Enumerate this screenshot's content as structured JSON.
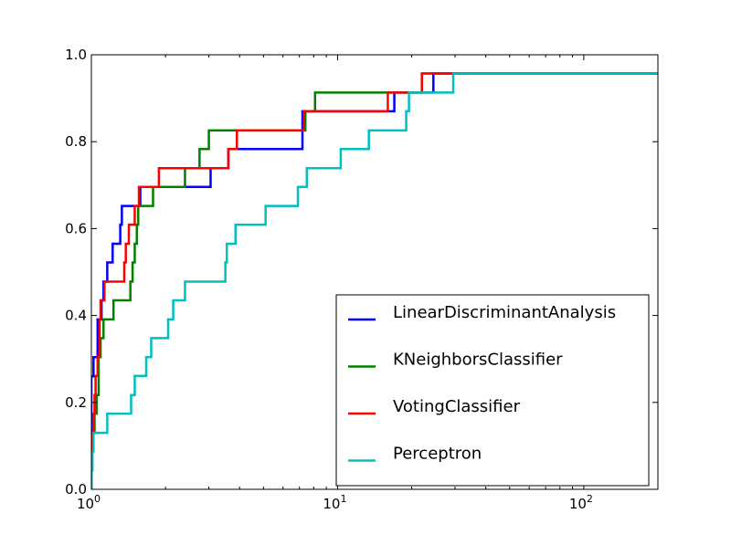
{
  "chart_data": {
    "type": "line",
    "title": "",
    "xlabel": "",
    "ylabel": "",
    "xscale": "log",
    "xlim": [
      1,
      200
    ],
    "ylim": [
      0,
      1.0
    ],
    "x_tick_labels": [
      {
        "value": 1,
        "base": "10",
        "exp": "0"
      },
      {
        "value": 10,
        "base": "10",
        "exp": "1"
      },
      {
        "value": 100,
        "base": "10",
        "exp": "2"
      }
    ],
    "y_ticks": [
      0.0,
      0.2,
      0.4,
      0.6,
      0.8,
      1.0
    ],
    "y_tick_labels": [
      "0.0",
      "0.2",
      "0.4",
      "0.6",
      "0.8",
      "1.0"
    ],
    "legend_position": "lower-right",
    "grid": false,
    "series": [
      {
        "name": "LinearDiscriminantAnalysis",
        "color": "#0000ff",
        "step": true,
        "points": [
          [
            1.0,
            0.0
          ],
          [
            1.0,
            0.26
          ],
          [
            1.02,
            0.26
          ],
          [
            1.02,
            0.304
          ],
          [
            1.06,
            0.304
          ],
          [
            1.06,
            0.391
          ],
          [
            1.1,
            0.391
          ],
          [
            1.1,
            0.435
          ],
          [
            1.12,
            0.435
          ],
          [
            1.12,
            0.478
          ],
          [
            1.16,
            0.478
          ],
          [
            1.16,
            0.522
          ],
          [
            1.22,
            0.522
          ],
          [
            1.22,
            0.565
          ],
          [
            1.31,
            0.565
          ],
          [
            1.31,
            0.609
          ],
          [
            1.33,
            0.609
          ],
          [
            1.33,
            0.652
          ],
          [
            1.58,
            0.652
          ],
          [
            1.58,
            0.696
          ],
          [
            3.05,
            0.696
          ],
          [
            3.05,
            0.739
          ],
          [
            3.6,
            0.739
          ],
          [
            3.6,
            0.783
          ],
          [
            7.2,
            0.783
          ],
          [
            7.2,
            0.87
          ],
          [
            17.0,
            0.87
          ],
          [
            17.0,
            0.913
          ],
          [
            22.0,
            0.913
          ],
          [
            22.0,
            0.913
          ],
          [
            24.5,
            0.913
          ],
          [
            24.5,
            0.957
          ],
          [
            200,
            0.957
          ]
        ]
      },
      {
        "name": "KNeighborsClassifier",
        "color": "#008000",
        "step": true,
        "points": [
          [
            1.0,
            0.0
          ],
          [
            1.0,
            0.13
          ],
          [
            1.03,
            0.13
          ],
          [
            1.03,
            0.174
          ],
          [
            1.05,
            0.174
          ],
          [
            1.05,
            0.217
          ],
          [
            1.07,
            0.217
          ],
          [
            1.07,
            0.304
          ],
          [
            1.09,
            0.304
          ],
          [
            1.09,
            0.348
          ],
          [
            1.12,
            0.348
          ],
          [
            1.12,
            0.391
          ],
          [
            1.23,
            0.391
          ],
          [
            1.23,
            0.435
          ],
          [
            1.44,
            0.435
          ],
          [
            1.44,
            0.478
          ],
          [
            1.47,
            0.478
          ],
          [
            1.47,
            0.522
          ],
          [
            1.5,
            0.522
          ],
          [
            1.5,
            0.565
          ],
          [
            1.53,
            0.565
          ],
          [
            1.53,
            0.609
          ],
          [
            1.55,
            0.609
          ],
          [
            1.55,
            0.652
          ],
          [
            1.78,
            0.652
          ],
          [
            1.78,
            0.696
          ],
          [
            2.4,
            0.696
          ],
          [
            2.4,
            0.739
          ],
          [
            2.75,
            0.739
          ],
          [
            2.75,
            0.783
          ],
          [
            3.0,
            0.783
          ],
          [
            3.0,
            0.826
          ],
          [
            7.4,
            0.826
          ],
          [
            7.4,
            0.87
          ],
          [
            8.1,
            0.87
          ],
          [
            8.1,
            0.913
          ],
          [
            22.0,
            0.913
          ],
          [
            22.0,
            0.957
          ],
          [
            200,
            0.957
          ]
        ]
      },
      {
        "name": "VotingClassifier",
        "color": "#ff0000",
        "step": true,
        "points": [
          [
            1.0,
            0.0
          ],
          [
            1.0,
            0.13
          ],
          [
            1.02,
            0.13
          ],
          [
            1.02,
            0.174
          ],
          [
            1.03,
            0.174
          ],
          [
            1.03,
            0.217
          ],
          [
            1.04,
            0.217
          ],
          [
            1.04,
            0.261
          ],
          [
            1.06,
            0.261
          ],
          [
            1.06,
            0.304
          ],
          [
            1.08,
            0.304
          ],
          [
            1.08,
            0.391
          ],
          [
            1.09,
            0.391
          ],
          [
            1.09,
            0.435
          ],
          [
            1.13,
            0.435
          ],
          [
            1.13,
            0.478
          ],
          [
            1.36,
            0.478
          ],
          [
            1.36,
            0.522
          ],
          [
            1.38,
            0.522
          ],
          [
            1.38,
            0.565
          ],
          [
            1.42,
            0.565
          ],
          [
            1.42,
            0.609
          ],
          [
            1.5,
            0.609
          ],
          [
            1.5,
            0.652
          ],
          [
            1.56,
            0.652
          ],
          [
            1.56,
            0.696
          ],
          [
            1.88,
            0.696
          ],
          [
            1.88,
            0.739
          ],
          [
            3.6,
            0.739
          ],
          [
            3.6,
            0.783
          ],
          [
            3.9,
            0.783
          ],
          [
            3.9,
            0.826
          ],
          [
            7.3,
            0.826
          ],
          [
            7.3,
            0.87
          ],
          [
            16.0,
            0.87
          ],
          [
            16.0,
            0.913
          ],
          [
            22.0,
            0.913
          ],
          [
            22.0,
            0.957
          ],
          [
            200,
            0.957
          ]
        ]
      },
      {
        "name": "Perceptron",
        "color": "#00bfbf",
        "step": true,
        "points": [
          [
            1.0,
            0.0
          ],
          [
            1.0,
            0.043
          ],
          [
            1.01,
            0.043
          ],
          [
            1.01,
            0.087
          ],
          [
            1.02,
            0.087
          ],
          [
            1.02,
            0.13
          ],
          [
            1.16,
            0.13
          ],
          [
            1.16,
            0.174
          ],
          [
            1.45,
            0.174
          ],
          [
            1.45,
            0.217
          ],
          [
            1.5,
            0.217
          ],
          [
            1.5,
            0.261
          ],
          [
            1.67,
            0.261
          ],
          [
            1.67,
            0.304
          ],
          [
            1.75,
            0.304
          ],
          [
            1.75,
            0.348
          ],
          [
            2.05,
            0.348
          ],
          [
            2.05,
            0.391
          ],
          [
            2.15,
            0.391
          ],
          [
            2.15,
            0.435
          ],
          [
            2.4,
            0.435
          ],
          [
            2.4,
            0.478
          ],
          [
            3.5,
            0.478
          ],
          [
            3.5,
            0.522
          ],
          [
            3.55,
            0.522
          ],
          [
            3.55,
            0.565
          ],
          [
            3.85,
            0.565
          ],
          [
            3.85,
            0.609
          ],
          [
            5.1,
            0.609
          ],
          [
            5.1,
            0.652
          ],
          [
            6.9,
            0.652
          ],
          [
            6.9,
            0.696
          ],
          [
            7.5,
            0.696
          ],
          [
            7.5,
            0.739
          ],
          [
            10.3,
            0.739
          ],
          [
            10.3,
            0.783
          ],
          [
            13.4,
            0.783
          ],
          [
            13.4,
            0.826
          ],
          [
            19.0,
            0.826
          ],
          [
            19.0,
            0.87
          ],
          [
            19.5,
            0.87
          ],
          [
            19.5,
            0.913
          ],
          [
            29.5,
            0.913
          ],
          [
            29.5,
            0.957
          ],
          [
            200,
            0.957
          ]
        ]
      }
    ]
  }
}
